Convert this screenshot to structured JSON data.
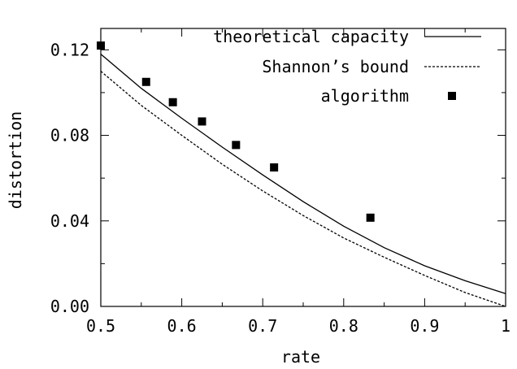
{
  "chart_data": {
    "type": "line",
    "title": "",
    "xlabel": "rate",
    "ylabel": "distortion",
    "xlim": [
      0.5,
      1.0
    ],
    "ylim": [
      0.0,
      0.13
    ],
    "x_ticks": [
      0.5,
      0.6,
      0.7,
      0.8,
      0.9,
      1.0
    ],
    "x_tick_labels": [
      "0.5",
      "0.6",
      "0.7",
      "0.8",
      "0.9",
      "1"
    ],
    "y_ticks": [
      0.0,
      0.04,
      0.08,
      0.12
    ],
    "y_tick_labels": [
      "0.00",
      "0.04",
      "0.08",
      "0.12"
    ],
    "grid": false,
    "legend_position": "top-right",
    "series": [
      {
        "name": "theoretical capacity",
        "style": "solid-line",
        "color": "#000000",
        "x": [
          0.5,
          0.55,
          0.6,
          0.65,
          0.7,
          0.75,
          0.8,
          0.85,
          0.9,
          0.95,
          1.0
        ],
        "y": [
          0.118,
          0.102,
          0.088,
          0.0745,
          0.0615,
          0.049,
          0.0375,
          0.0275,
          0.019,
          0.012,
          0.006
        ]
      },
      {
        "name": "Shannon’s bound",
        "style": "dashed-line",
        "color": "#000000",
        "x": [
          0.5,
          0.55,
          0.6,
          0.65,
          0.7,
          0.75,
          0.8,
          0.85,
          0.9,
          0.95,
          1.0
        ],
        "y": [
          0.11,
          0.094,
          0.08,
          0.0665,
          0.054,
          0.0425,
          0.032,
          0.023,
          0.0145,
          0.0065,
          0.0
        ]
      },
      {
        "name": "algorithm",
        "style": "square-markers",
        "color": "#000000",
        "x": [
          0.5,
          0.556,
          0.589,
          0.625,
          0.667,
          0.714,
          0.833
        ],
        "y": [
          0.122,
          0.105,
          0.0955,
          0.0865,
          0.0755,
          0.065,
          0.0415
        ]
      }
    ]
  }
}
